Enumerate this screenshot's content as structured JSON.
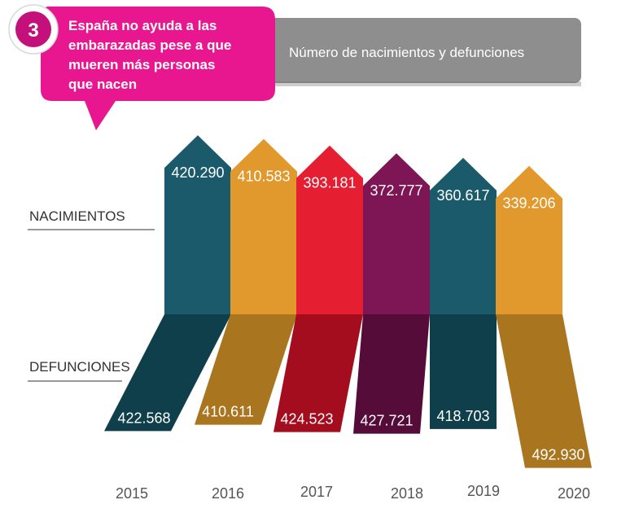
{
  "badge": {
    "number": "3"
  },
  "title_lines": [
    "España no ayuda a las",
    "embarazadas pese a que",
    "mueren más personas",
    "que nacen"
  ],
  "subtitle": "Número de nacimientos y defunciones",
  "colors": {
    "magenta": "#E8168F",
    "gray_band": "#8E8E8E",
    "badge_dark": "#C4107A",
    "births": [
      "#1B5A6B",
      "#E1982C",
      "#E51E31",
      "#7E1554",
      "#1B5A6B",
      "#E1982C"
    ],
    "deaths": [
      "#0E3F4B",
      "#A9751F",
      "#A30D1E",
      "#560C38",
      "#0E3F4B",
      "#A9751F"
    ]
  },
  "chart_data": {
    "type": "bar",
    "title": "Número de nacimientos y defunciones",
    "categories": [
      "2015",
      "2016",
      "2017",
      "2018",
      "2019",
      "2020"
    ],
    "series": [
      {
        "name": "NACIMIENTOS",
        "values": [
          420290,
          410583,
          393181,
          372777,
          360617,
          339206
        ],
        "labels": [
          "420.290",
          "410.583",
          "393.181",
          "372.777",
          "360.617",
          "339.206"
        ]
      },
      {
        "name": "DEFUNCIONES",
        "values": [
          422568,
          410611,
          424523,
          427721,
          418703,
          492930
        ],
        "labels": [
          "422.568",
          "410.611",
          "424.523",
          "427.721",
          "418.703",
          "492.930"
        ]
      }
    ]
  }
}
